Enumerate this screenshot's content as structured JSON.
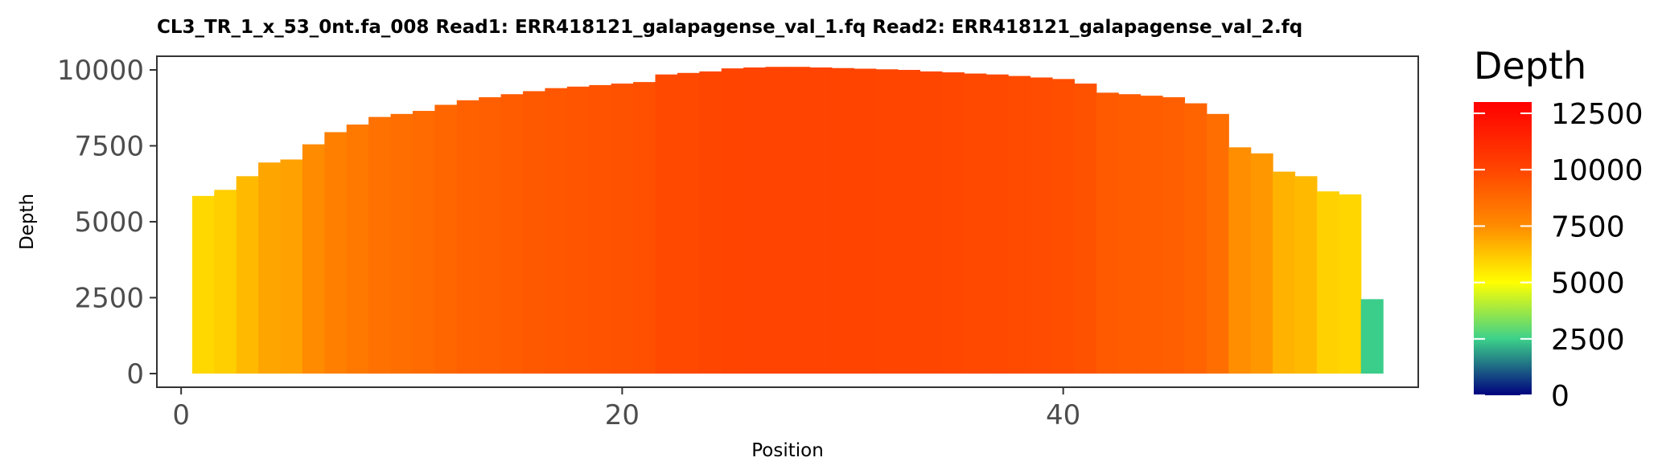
{
  "chart_data": {
    "type": "bar",
    "title": "CL3_TR_1_x_53_0nt.fa_008   Read1: ERR418121_galapagense_val_1.fq   Read2: ERR418121_galapagense_val_2.fq",
    "xlabel": "Position",
    "ylabel": "Depth",
    "x": [
      1,
      2,
      3,
      4,
      5,
      6,
      7,
      8,
      9,
      10,
      11,
      12,
      13,
      14,
      15,
      16,
      17,
      18,
      19,
      20,
      21,
      22,
      23,
      24,
      25,
      26,
      27,
      28,
      29,
      30,
      31,
      32,
      33,
      34,
      35,
      36,
      37,
      38,
      39,
      40,
      41,
      42,
      43,
      44,
      45,
      46,
      47,
      48,
      49,
      50,
      51,
      52,
      53,
      54
    ],
    "values": [
      5850,
      6050,
      6500,
      6950,
      7050,
      7550,
      7950,
      8200,
      8450,
      8550,
      8650,
      8850,
      9000,
      9100,
      9200,
      9300,
      9400,
      9450,
      9500,
      9550,
      9600,
      9850,
      9900,
      9950,
      10050,
      10080,
      10100,
      10100,
      10080,
      10060,
      10040,
      10020,
      10000,
      9950,
      9920,
      9880,
      9850,
      9800,
      9750,
      9700,
      9550,
      9250,
      9200,
      9150,
      9100,
      8900,
      8550,
      7450,
      7250,
      6650,
      6500,
      6000,
      5900,
      2450
    ],
    "xlim": [
      -1.1,
      56.1
    ],
    "ylim": [
      -450,
      10450
    ],
    "xticks": [
      0,
      20,
      40
    ],
    "yticks": [
      0,
      2500,
      5000,
      7500,
      10000
    ],
    "grid": false,
    "legend": {
      "title": "Depth",
      "placement": "right",
      "range": [
        0,
        13000
      ],
      "ticks": [
        0,
        2500,
        5000,
        7500,
        10000,
        12500
      ],
      "colors": [
        "#00007f",
        "#3cd18a",
        "#ffff00",
        "#ff8c00",
        "#ff4500",
        "#ff0000"
      ],
      "color_stops": [
        0,
        2500,
        5000,
        7500,
        10000,
        13000
      ]
    }
  }
}
